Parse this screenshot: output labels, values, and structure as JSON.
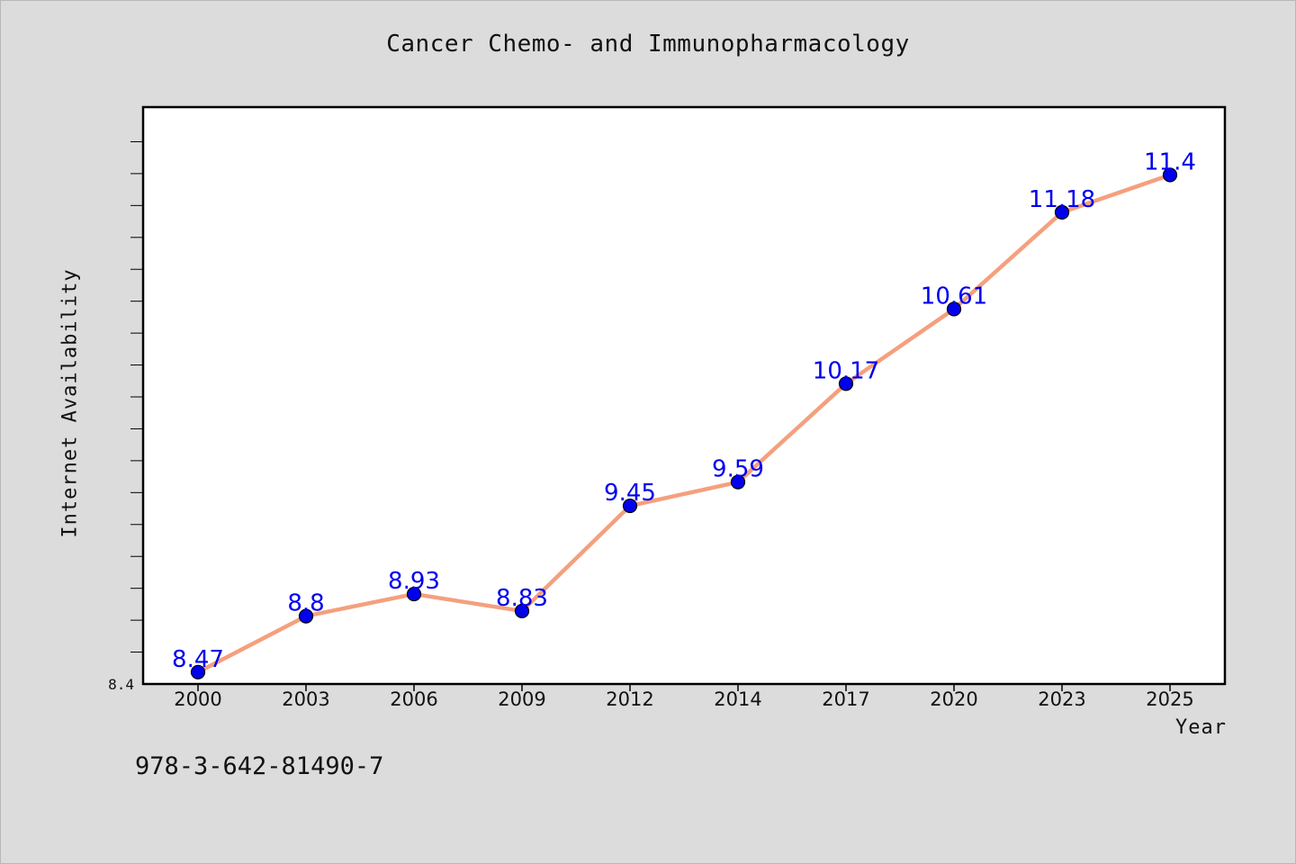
{
  "chart_data": {
    "type": "line",
    "title": "Cancer Chemo- and Immunopharmacology",
    "xlabel": "Year",
    "ylabel": "Internet Availability",
    "categories": [
      "2000",
      "2003",
      "2006",
      "2009",
      "2012",
      "2014",
      "2017",
      "2020",
      "2023",
      "2025"
    ],
    "series": [
      {
        "values": [
          8.47,
          8.8,
          8.93,
          8.83,
          9.45,
          9.59,
          10.17,
          10.61,
          11.18,
          11.4
        ],
        "data_labels": [
          "8.47",
          "8.8",
          "8.93",
          "8.83",
          "9.45",
          "9.59",
          "10.17",
          "10.61",
          "11.18",
          "11.4"
        ]
      }
    ],
    "ylim": [
      8.4,
      11.8
    ],
    "y_tick_labels": [
      "8.4"
    ],
    "grid": false,
    "colors": {
      "line": "#f4a07e",
      "marker": "#0000ee",
      "label": "#0000ee",
      "plot_background": "#ffffff",
      "figure_background": "#dcdcdc"
    }
  },
  "footnote": "978-3-642-81490-7"
}
